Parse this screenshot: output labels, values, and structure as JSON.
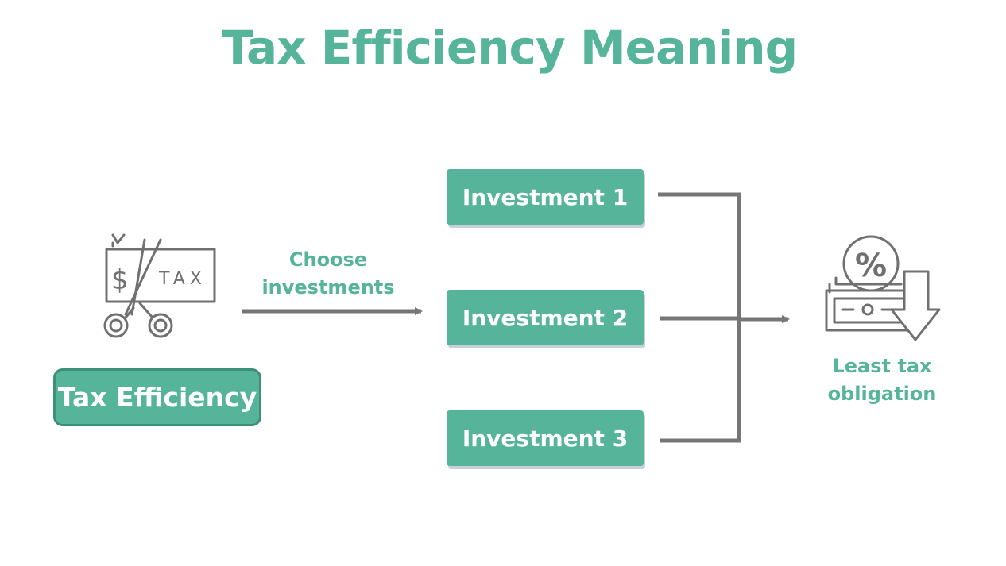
{
  "title": "Tax Efficiency Meaning",
  "source_node": {
    "label": "Tax Efficiency",
    "icon": "scissors-cutting-tax-icon",
    "icon_text": {
      "dollar": "$",
      "tax": "TAX"
    }
  },
  "edge_label": "Choose investments",
  "investments": [
    "Investment 1",
    "Investment 2",
    "Investment 3"
  ],
  "result": {
    "label": "Least tax obligation",
    "icon": "percent-money-down-arrow-icon",
    "icon_text": "%"
  },
  "colors": {
    "accent": "#56b49b",
    "accent_dark": "#3d8f78",
    "connector": "#767676",
    "icon_stroke": "#707070"
  }
}
